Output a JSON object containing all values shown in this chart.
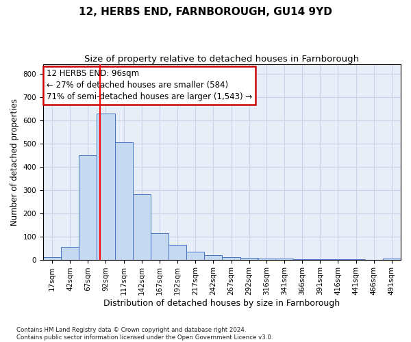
{
  "title1": "12, HERBS END, FARNBOROUGH, GU14 9YD",
  "title2": "Size of property relative to detached houses in Farnborough",
  "xlabel": "Distribution of detached houses by size in Farnborough",
  "ylabel": "Number of detached properties",
  "footnote": "Contains HM Land Registry data © Crown copyright and database right 2024.\nContains public sector information licensed under the Open Government Licence v3.0.",
  "bar_edges": [
    17,
    42,
    67,
    92,
    117,
    142,
    167,
    192,
    217,
    242,
    267,
    292,
    316,
    341,
    366,
    391,
    416,
    441,
    466,
    491,
    516
  ],
  "bar_heights": [
    10,
    55,
    450,
    630,
    505,
    280,
    115,
    65,
    35,
    20,
    10,
    8,
    6,
    4,
    3,
    2,
    1,
    1,
    0,
    5,
    0
  ],
  "bar_color": "#c5d9f1",
  "bar_edge_color": "#4472c4",
  "property_value": 96,
  "red_line_color": "#ff0000",
  "annotation_line1": "12 HERBS END: 96sqm",
  "annotation_line2": "← 27% of detached houses are smaller (584)",
  "annotation_line3": "71% of semi-detached houses are larger (1,543) →",
  "annotation_box_color": "#cc0000",
  "ylim": [
    0,
    840
  ],
  "yticks": [
    0,
    100,
    200,
    300,
    400,
    500,
    600,
    700,
    800
  ],
  "grid_color": "#c8d4e8",
  "background_color": "#e8eef8",
  "title1_fontsize": 11,
  "title2_fontsize": 9.5,
  "xlabel_fontsize": 9,
  "ylabel_fontsize": 8.5,
  "annotation_fontsize": 8.5,
  "tick_fontsize": 7.5
}
